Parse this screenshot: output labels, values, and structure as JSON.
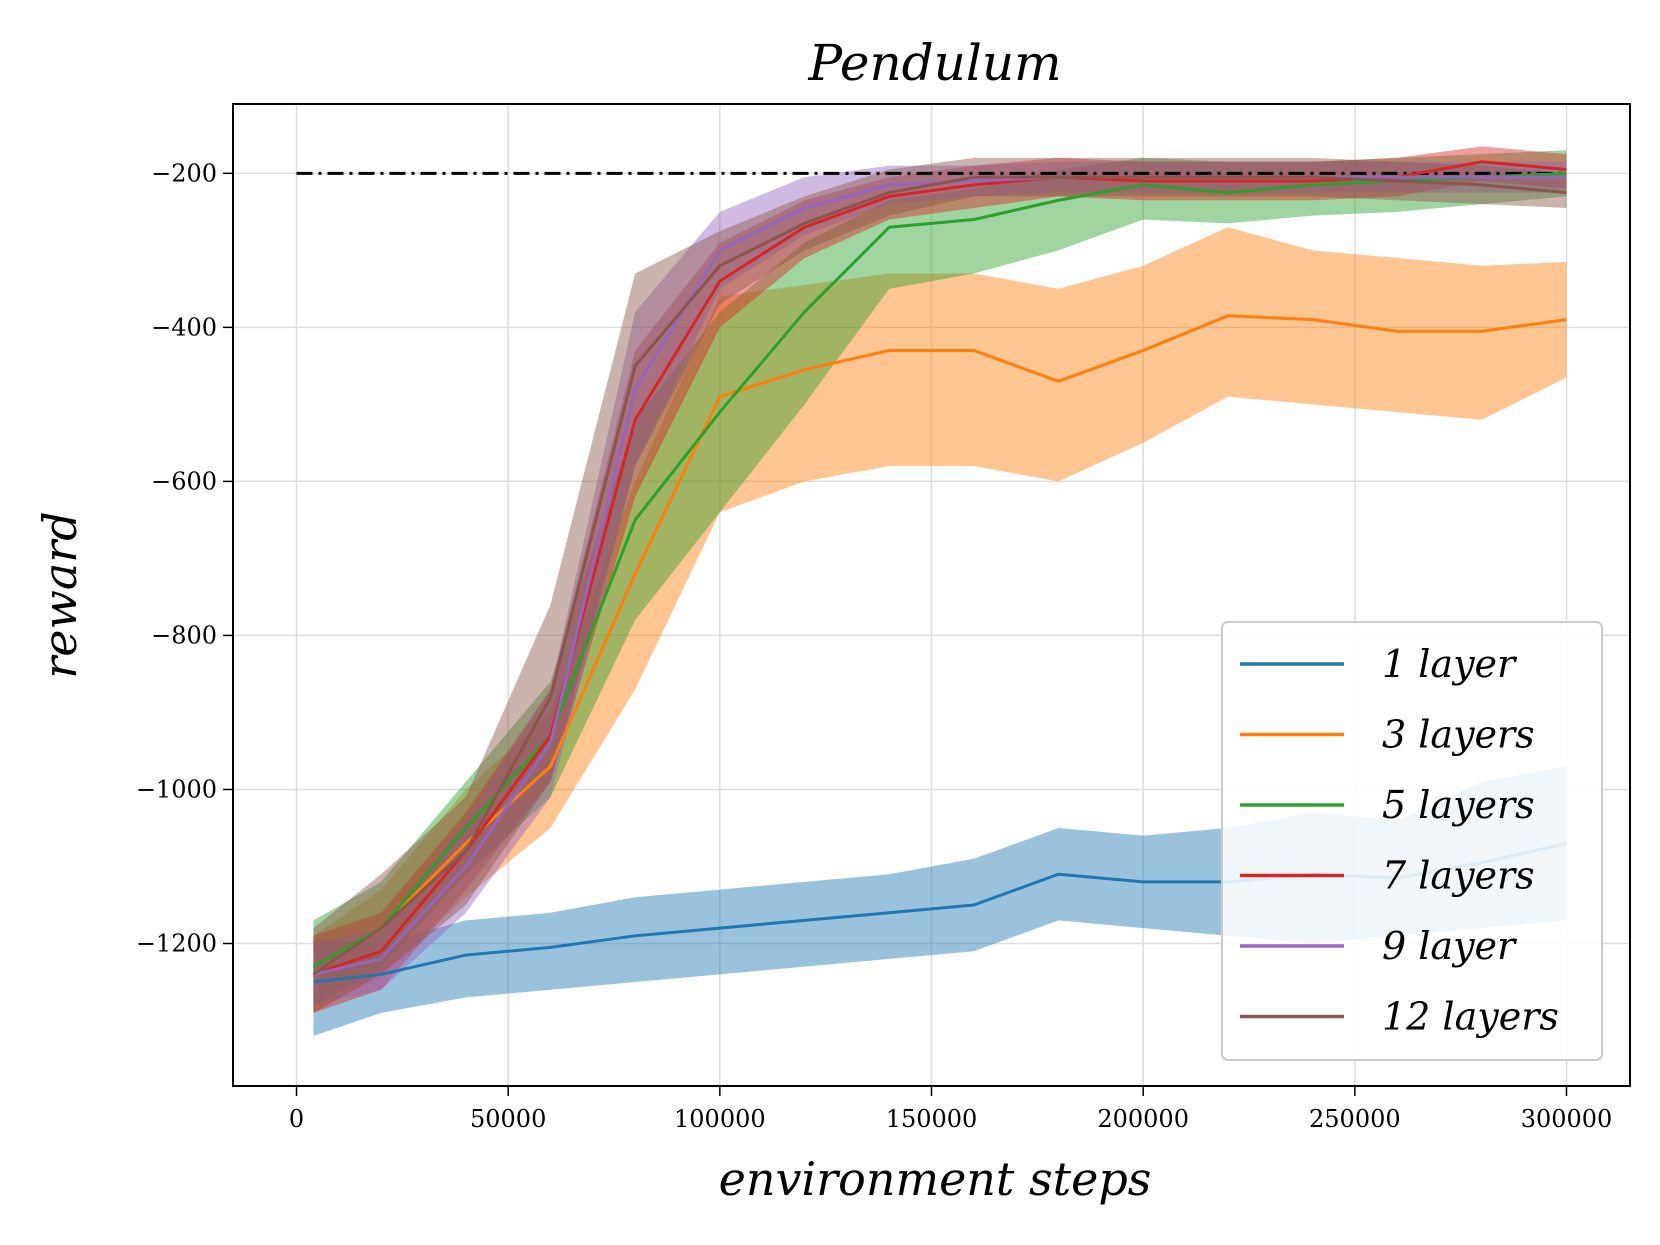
{
  "chart_data": {
    "type": "line",
    "title": "Pendulum",
    "xlabel": "environment steps",
    "ylabel": "reward",
    "xlim": [
      -15000,
      315000
    ],
    "ylim": [
      -1385,
      -110
    ],
    "x_ticks": [
      0,
      50000,
      100000,
      150000,
      200000,
      250000,
      300000
    ],
    "x_tick_labels": [
      "0",
      "50000",
      "100000",
      "150000",
      "200000",
      "250000",
      "300000"
    ],
    "y_ticks": [
      -200,
      -400,
      -600,
      -800,
      -1000,
      -1200
    ],
    "y_tick_labels": [
      "−200",
      "−400",
      "−600",
      "−800",
      "−1000",
      "−1200"
    ],
    "grid": true,
    "legend_position": "lower-right",
    "reference_line": {
      "y": -200,
      "x": [
        0,
        300000
      ],
      "style": "dash-dot",
      "color": "#000000"
    },
    "series": [
      {
        "name": "1 layer",
        "color": "#1f77b4",
        "x": [
          4000,
          20000,
          40000,
          60000,
          80000,
          100000,
          120000,
          140000,
          160000,
          180000,
          200000,
          220000,
          240000,
          260000,
          280000,
          300000
        ],
        "mean": [
          -1250,
          -1240,
          -1215,
          -1205,
          -1190,
          -1180,
          -1170,
          -1160,
          -1150,
          -1110,
          -1120,
          -1120,
          -1110,
          -1115,
          -1095,
          -1070
        ],
        "lower": [
          -1320,
          -1290,
          -1270,
          -1260,
          -1250,
          -1240,
          -1230,
          -1220,
          -1210,
          -1170,
          -1180,
          -1190,
          -1200,
          -1190,
          -1180,
          -1170
        ],
        "upper": [
          -1195,
          -1200,
          -1170,
          -1160,
          -1140,
          -1130,
          -1120,
          -1110,
          -1090,
          -1050,
          -1060,
          -1050,
          -1030,
          -1040,
          -990,
          -970
        ]
      },
      {
        "name": "3 layers",
        "color": "#ff7f0e",
        "x": [
          4000,
          20000,
          40000,
          60000,
          80000,
          100000,
          120000,
          140000,
          160000,
          180000,
          200000,
          220000,
          240000,
          260000,
          280000,
          300000
        ],
        "mean": [
          -1240,
          -1180,
          -1070,
          -970,
          -720,
          -490,
          -455,
          -430,
          -430,
          -470,
          -430,
          -385,
          -390,
          -405,
          -405,
          -390
        ],
        "lower": [
          -1290,
          -1240,
          -1140,
          -1050,
          -870,
          -640,
          -600,
          -580,
          -580,
          -600,
          -550,
          -490,
          -500,
          -510,
          -520,
          -465
        ],
        "upper": [
          -1190,
          -1130,
          -1000,
          -900,
          -600,
          -360,
          -345,
          -330,
          -330,
          -350,
          -320,
          -270,
          -300,
          -310,
          -320,
          -315
        ]
      },
      {
        "name": "5 layers",
        "color": "#2ca02c",
        "x": [
          4000,
          20000,
          40000,
          60000,
          80000,
          100000,
          120000,
          140000,
          160000,
          180000,
          200000,
          220000,
          240000,
          260000,
          280000,
          300000
        ],
        "mean": [
          -1230,
          -1180,
          -1050,
          -930,
          -650,
          -510,
          -380,
          -270,
          -260,
          -235,
          -215,
          -225,
          -215,
          -210,
          -205,
          -200
        ],
        "lower": [
          -1280,
          -1230,
          -1110,
          -1010,
          -780,
          -640,
          -500,
          -350,
          -330,
          -300,
          -260,
          -265,
          -255,
          -250,
          -240,
          -230
        ],
        "upper": [
          -1170,
          -1120,
          -990,
          -860,
          -520,
          -380,
          -290,
          -235,
          -220,
          -195,
          -180,
          -185,
          -185,
          -180,
          -175,
          -170
        ]
      },
      {
        "name": "7 layers",
        "color": "#d62728",
        "x": [
          4000,
          20000,
          40000,
          60000,
          80000,
          100000,
          120000,
          140000,
          160000,
          180000,
          200000,
          220000,
          240000,
          260000,
          280000,
          300000
        ],
        "mean": [
          -1240,
          -1210,
          -1080,
          -930,
          -520,
          -340,
          -270,
          -230,
          -215,
          -205,
          -210,
          -210,
          -210,
          -205,
          -185,
          -195
        ],
        "lower": [
          -1290,
          -1260,
          -1130,
          -990,
          -620,
          -400,
          -310,
          -260,
          -245,
          -230,
          -235,
          -235,
          -235,
          -230,
          -210,
          -220
        ],
        "upper": [
          -1190,
          -1160,
          -1030,
          -870,
          -430,
          -290,
          -235,
          -205,
          -190,
          -180,
          -185,
          -185,
          -185,
          -180,
          -165,
          -175
        ]
      },
      {
        "name": "9 layer",
        "color": "#9467bd",
        "x": [
          4000,
          20000,
          40000,
          60000,
          80000,
          100000,
          120000,
          140000,
          160000,
          180000,
          200000,
          220000,
          240000,
          260000,
          280000,
          300000
        ],
        "mean": [
          -1240,
          -1220,
          -1100,
          -940,
          -480,
          -300,
          -245,
          -215,
          -210,
          -205,
          -205,
          -205,
          -205,
          -205,
          -205,
          -205
        ],
        "lower": [
          -1280,
          -1260,
          -1160,
          -1010,
          -580,
          -350,
          -280,
          -240,
          -230,
          -225,
          -225,
          -225,
          -225,
          -225,
          -225,
          -225
        ],
        "upper": [
          -1200,
          -1180,
          -1040,
          -870,
          -380,
          -250,
          -205,
          -190,
          -190,
          -185,
          -185,
          -185,
          -185,
          -185,
          -185,
          -185
        ]
      },
      {
        "name": "12 layers",
        "color": "#8c564b",
        "x": [
          4000,
          20000,
          40000,
          60000,
          80000,
          100000,
          120000,
          140000,
          160000,
          180000,
          200000,
          220000,
          240000,
          260000,
          280000,
          300000
        ],
        "mean": [
          -1240,
          -1180,
          -1080,
          -880,
          -450,
          -320,
          -265,
          -225,
          -205,
          -205,
          -205,
          -205,
          -205,
          -210,
          -215,
          -225
        ],
        "lower": [
          -1290,
          -1240,
          -1150,
          -990,
          -580,
          -370,
          -300,
          -255,
          -230,
          -230,
          -230,
          -230,
          -230,
          -235,
          -240,
          -245
        ],
        "upper": [
          -1180,
          -1110,
          -1010,
          -760,
          -330,
          -275,
          -230,
          -195,
          -180,
          -180,
          -180,
          -180,
          -180,
          -185,
          -190,
          -200
        ]
      }
    ]
  }
}
